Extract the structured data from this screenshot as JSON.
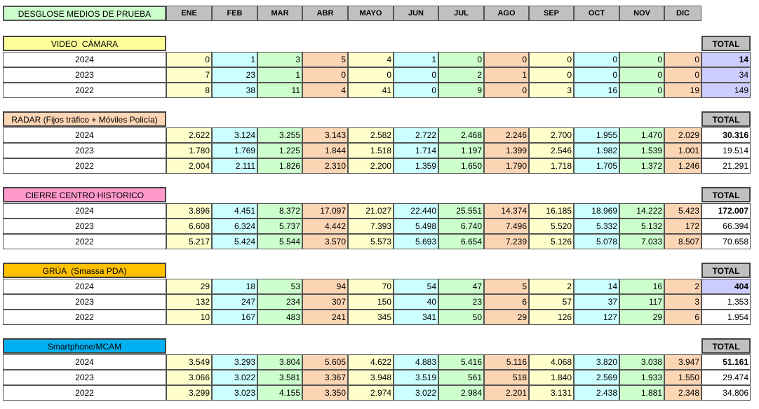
{
  "header": {
    "title": "DESGLOSE MEDIOS DE PRUEBA",
    "months": [
      "ENE",
      "FEB",
      "MAR",
      "ABR",
      "MAYO",
      "JUN",
      "JUL",
      "AGO",
      "SEP",
      "OCT",
      "NOV",
      "DIC"
    ]
  },
  "sections": [
    {
      "title": "VIDEO  CÁMARA",
      "total_label": "TOTAL",
      "rows": [
        {
          "year": "2024",
          "values": [
            "0",
            "1",
            "3",
            "5",
            "4",
            "1",
            "0",
            "0",
            "0",
            "0",
            "0",
            "0"
          ],
          "total": "14"
        },
        {
          "year": "2023",
          "values": [
            "7",
            "23",
            "1",
            "0",
            "0",
            "0",
            "2",
            "1",
            "0",
            "0",
            "0",
            "0"
          ],
          "total": "34"
        },
        {
          "year": "2022",
          "values": [
            "8",
            "38",
            "11",
            "4",
            "41",
            "0",
            "9",
            "0",
            "3",
            "16",
            "0",
            "19"
          ],
          "total": "149"
        }
      ]
    },
    {
      "title": "RADAR (Fijos tráfico + Móviles Policía)",
      "total_label": "TOTAL",
      "rows": [
        {
          "year": "2024",
          "values": [
            "2.622",
            "3.124",
            "3.255",
            "3.143",
            "2.582",
            "2.722",
            "2.468",
            "2.246",
            "2.700",
            "1.955",
            "1.470",
            "2.029"
          ],
          "total": "30.316"
        },
        {
          "year": "2023",
          "values": [
            "1.780",
            "1.769",
            "1.225",
            "1.844",
            "1.518",
            "1.714",
            "1.197",
            "1.399",
            "2.546",
            "1.982",
            "1.539",
            "1.001"
          ],
          "total": "19.514"
        },
        {
          "year": "2022",
          "values": [
            "2.004",
            "2.111",
            "1.826",
            "2.310",
            "2.200",
            "1.359",
            "1.650",
            "1.790",
            "1.718",
            "1.705",
            "1.372",
            "1.246"
          ],
          "total": "21.291"
        }
      ]
    },
    {
      "title": "CIERRE CENTRO HISTORICO",
      "total_label": "TOTAL",
      "rows": [
        {
          "year": "2024",
          "values": [
            "3.896",
            "4.451",
            "8.372",
            "17.097",
            "21.027",
            "22.440",
            "25.551",
            "14.374",
            "16.185",
            "18.969",
            "14.222",
            "5.423"
          ],
          "total": "172.007"
        },
        {
          "year": "2023",
          "values": [
            "6.608",
            "6.324",
            "5.737",
            "4.442",
            "7.393",
            "5.498",
            "6.740",
            "7.496",
            "5.520",
            "5.332",
            "5.132",
            "172"
          ],
          "total": "66.394"
        },
        {
          "year": "2022",
          "values": [
            "5.217",
            "5.424",
            "5.544",
            "3.570",
            "5.573",
            "5.693",
            "6.654",
            "7.239",
            "5.126",
            "5.078",
            "7.033",
            "8.507"
          ],
          "total": "70.658"
        }
      ]
    },
    {
      "title": "GRÚA  (Smassa PDA)",
      "total_label": "TOTAL",
      "rows": [
        {
          "year": "2024",
          "values": [
            "29",
            "18",
            "53",
            "94",
            "70",
            "54",
            "47",
            "5",
            "2",
            "14",
            "16",
            "2"
          ],
          "total": "404"
        },
        {
          "year": "2023",
          "values": [
            "132",
            "247",
            "234",
            "307",
            "150",
            "40",
            "23",
            "6",
            "57",
            "37",
            "117",
            "3"
          ],
          "total": "1.353"
        },
        {
          "year": "2022",
          "values": [
            "10",
            "167",
            "483",
            "241",
            "345",
            "341",
            "50",
            "29",
            "126",
            "127",
            "29",
            "6"
          ],
          "total": "1.954"
        }
      ]
    },
    {
      "title": "Smartphone/MCAM",
      "total_label": "TOTAL",
      "rows": [
        {
          "year": "2024",
          "values": [
            "3.549",
            "3.293",
            "3.804",
            "5.605",
            "4.622",
            "4.883",
            "5.416",
            "5.116",
            "4.068",
            "3.820",
            "3.038",
            "3.947"
          ],
          "total": "51.161"
        },
        {
          "year": "2023",
          "values": [
            "3.066",
            "3.022",
            "3.581",
            "3.367",
            "3.948",
            "3.519",
            "561",
            "518",
            "1.840",
            "2.569",
            "1.933",
            "1.550"
          ],
          "total": "29.474"
        },
        {
          "year": "2022",
          "values": [
            "3.299",
            "3.023",
            "4.155",
            "3.350",
            "2.974",
            "3.022",
            "2.984",
            "2.201",
            "3.131",
            "2.438",
            "1.881",
            "2.348"
          ],
          "total": "34.806"
        }
      ]
    }
  ]
}
